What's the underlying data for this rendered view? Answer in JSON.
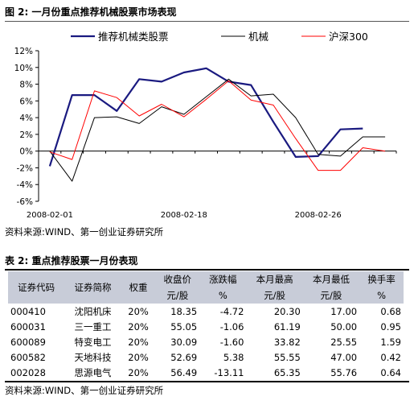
{
  "figure": {
    "title": "图 2:  一月份重点推荐机械股票市场表现",
    "source": "资料来源:WIND、第一创业证券研究所"
  },
  "chart_data": {
    "type": "line",
    "x": [
      "2008-02-01",
      "2008-02-04",
      "2008-02-05",
      "2008-02-13",
      "2008-02-14",
      "2008-02-15",
      "2008-02-18",
      "2008-02-19",
      "2008-02-20",
      "2008-02-21",
      "2008-02-22",
      "2008-02-25",
      "2008-02-26",
      "2008-02-27",
      "2008-02-28",
      "2008-02-29"
    ],
    "xticks": [
      "2008-02-01",
      "2008-02-18",
      "2008-02-26"
    ],
    "ylim": [
      -6,
      12
    ],
    "yticks": [
      "-6%",
      "-4%",
      "-2%",
      "0%",
      "2%",
      "4%",
      "6%",
      "8%",
      "10%",
      "12%"
    ],
    "series": [
      {
        "name": "推荐机械类股票",
        "color": "#1a1a80",
        "values": [
          -1.8,
          6.7,
          6.7,
          4.8,
          8.6,
          8.3,
          9.4,
          9.9,
          8.3,
          7.9,
          3.5,
          -0.7,
          -0.6,
          2.6,
          2.7,
          null
        ]
      },
      {
        "name": "机械",
        "color": "#000000",
        "values": [
          0.0,
          -3.6,
          4.0,
          4.1,
          3.3,
          5.3,
          4.4,
          6.5,
          8.6,
          6.6,
          6.8,
          4.0,
          -0.4,
          -0.6,
          1.7,
          1.7
        ]
      },
      {
        "name": "沪深300",
        "color": "#ff0000",
        "values": [
          -0.1,
          -1.0,
          7.2,
          6.4,
          4.2,
          5.6,
          4.1,
          6.2,
          8.4,
          6.1,
          5.5,
          1.5,
          -2.3,
          -2.3,
          0.4,
          0.0
        ]
      }
    ]
  },
  "table": {
    "title": "表 2:  重点推荐股票一月份表现",
    "headers": {
      "code": "证券代码",
      "name": "证券简称",
      "weight": "权重",
      "close": "收盘价",
      "change": "涨跌幅",
      "high": "本月最高",
      "low": "本月最低",
      "turnover": "换手率"
    },
    "units": {
      "close": "元/股",
      "change": "%",
      "high": "元/股",
      "low": "元/股",
      "turnover": "%"
    },
    "rows": [
      {
        "code": "000410",
        "name": "沈阳机床",
        "weight": "20%",
        "close": "18.35",
        "change": "-4.72",
        "high": "20.30",
        "low": "17.00",
        "turnover": "0.68"
      },
      {
        "code": "600031",
        "name": "三一重工",
        "weight": "20%",
        "close": "55.05",
        "change": "-1.06",
        "high": "61.19",
        "low": "50.00",
        "turnover": "0.95"
      },
      {
        "code": "600089",
        "name": "特变电工",
        "weight": "20%",
        "close": "30.09",
        "change": "-1.60",
        "high": "33.82",
        "low": "25.55",
        "turnover": "1.59"
      },
      {
        "code": "600582",
        "name": "天地科技",
        "weight": "20%",
        "close": "52.69",
        "change": "5.38",
        "high": "55.55",
        "low": "47.00",
        "turnover": "0.42"
      },
      {
        "code": "002028",
        "name": "思源电气",
        "weight": "20%",
        "close": "56.49",
        "change": "-13.11",
        "high": "65.35",
        "low": "55.76",
        "turnover": "0.64"
      }
    ],
    "source": "资料来源:WIND、第一创业证券研究所"
  }
}
